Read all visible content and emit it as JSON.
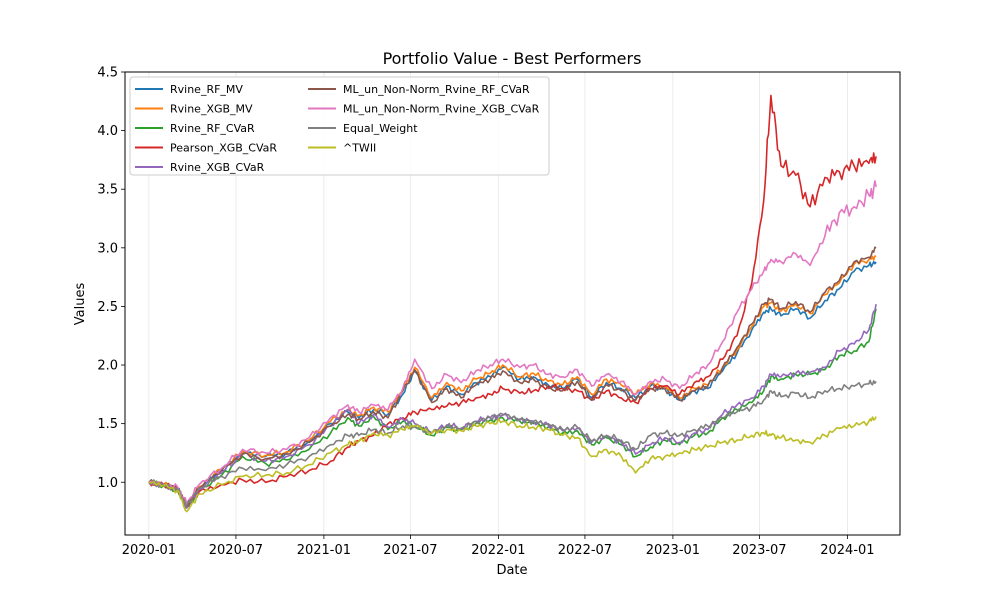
{
  "chart_data": {
    "type": "line",
    "title": "Portfolio Value - Best Performers",
    "xlabel": "Date",
    "ylabel": "Values",
    "x_tick_labels": [
      "2020-01",
      "2020-07",
      "2021-01",
      "2021-07",
      "2022-01",
      "2022-07",
      "2023-01",
      "2023-07",
      "2024-01"
    ],
    "y_tick_labels": [
      "1.0",
      "1.5",
      "2.0",
      "2.5",
      "3.0",
      "3.5",
      "4.0",
      "4.5"
    ],
    "xlim": [
      "2019-11-12",
      "2024-04-20"
    ],
    "ylim": [
      0.55,
      4.5
    ],
    "grid": "vertical",
    "legend_position": "top-left",
    "dates": [
      "2020-01-01",
      "2020-02-01",
      "2020-03-01",
      "2020-03-20",
      "2020-04-15",
      "2020-06-01",
      "2020-07-15",
      "2020-09-01",
      "2020-10-15",
      "2020-12-01",
      "2021-01-15",
      "2021-02-20",
      "2021-03-15",
      "2021-04-15",
      "2021-05-15",
      "2021-06-15",
      "2021-07-10",
      "2021-08-15",
      "2021-09-15",
      "2021-10-15",
      "2021-11-15",
      "2021-12-15",
      "2022-01-10",
      "2022-02-15",
      "2022-03-15",
      "2022-04-15",
      "2022-05-15",
      "2022-06-15",
      "2022-07-15",
      "2022-08-15",
      "2022-09-15",
      "2022-10-15",
      "2022-11-15",
      "2022-12-15",
      "2023-01-15",
      "2023-02-15",
      "2023-03-15",
      "2023-04-15",
      "2023-05-15",
      "2023-06-15",
      "2023-07-10",
      "2023-07-25",
      "2023-08-15",
      "2023-09-15",
      "2023-10-15",
      "2023-11-15",
      "2023-12-15",
      "2024-01-15",
      "2024-02-15",
      "2024-03-01"
    ],
    "series": [
      {
        "name": "Rvine_RF_MV",
        "color": "#1f77b4",
        "values": [
          1.0,
          0.98,
          0.95,
          0.8,
          0.95,
          1.1,
          1.25,
          1.22,
          1.25,
          1.35,
          1.5,
          1.6,
          1.55,
          1.62,
          1.58,
          1.75,
          1.95,
          1.7,
          1.82,
          1.75,
          1.85,
          1.9,
          1.98,
          1.88,
          1.9,
          1.83,
          1.8,
          1.88,
          1.72,
          1.85,
          1.8,
          1.72,
          1.82,
          1.8,
          1.7,
          1.78,
          1.8,
          1.95,
          2.1,
          2.3,
          2.45,
          2.48,
          2.42,
          2.48,
          2.4,
          2.55,
          2.65,
          2.8,
          2.85,
          2.88
        ]
      },
      {
        "name": "Rvine_XGB_MV",
        "color": "#ff7f0e",
        "values": [
          1.0,
          0.98,
          0.95,
          0.8,
          0.96,
          1.11,
          1.26,
          1.23,
          1.26,
          1.36,
          1.52,
          1.62,
          1.57,
          1.64,
          1.6,
          1.78,
          1.98,
          1.72,
          1.85,
          1.78,
          1.88,
          1.93,
          2.0,
          1.9,
          1.93,
          1.86,
          1.83,
          1.9,
          1.75,
          1.88,
          1.83,
          1.75,
          1.84,
          1.82,
          1.72,
          1.8,
          1.83,
          1.98,
          2.13,
          2.33,
          2.5,
          2.53,
          2.46,
          2.52,
          2.44,
          2.6,
          2.7,
          2.86,
          2.9,
          2.93
        ]
      },
      {
        "name": "Rvine_RF_CVaR",
        "color": "#2ca02c",
        "values": [
          1.0,
          0.97,
          0.93,
          0.78,
          0.93,
          1.06,
          1.22,
          1.16,
          1.19,
          1.28,
          1.42,
          1.55,
          1.48,
          1.56,
          1.45,
          1.52,
          1.48,
          1.4,
          1.47,
          1.44,
          1.5,
          1.53,
          1.55,
          1.52,
          1.5,
          1.47,
          1.42,
          1.44,
          1.32,
          1.38,
          1.32,
          1.22,
          1.3,
          1.36,
          1.32,
          1.4,
          1.42,
          1.55,
          1.62,
          1.68,
          1.78,
          1.9,
          1.88,
          1.92,
          1.92,
          1.96,
          2.08,
          2.12,
          2.2,
          2.48
        ]
      },
      {
        "name": "Pearson_XGB_CVaR",
        "color": "#d62728",
        "values": [
          1.0,
          0.98,
          0.95,
          0.8,
          0.92,
          0.98,
          1.02,
          1.0,
          1.05,
          1.1,
          1.18,
          1.3,
          1.35,
          1.4,
          1.5,
          1.55,
          1.6,
          1.62,
          1.65,
          1.68,
          1.72,
          1.75,
          1.8,
          1.76,
          1.78,
          1.82,
          1.8,
          1.78,
          1.7,
          1.78,
          1.72,
          1.68,
          1.8,
          1.82,
          1.75,
          1.85,
          1.9,
          2.05,
          2.25,
          2.7,
          3.4,
          4.3,
          3.7,
          3.62,
          3.35,
          3.6,
          3.65,
          3.7,
          3.72,
          3.78
        ]
      },
      {
        "name": "Rvine_XGB_CVaR",
        "color": "#9467bd",
        "values": [
          1.0,
          0.97,
          0.93,
          0.78,
          0.94,
          1.08,
          1.24,
          1.18,
          1.22,
          1.32,
          1.48,
          1.62,
          1.5,
          1.58,
          1.47,
          1.54,
          1.5,
          1.42,
          1.49,
          1.46,
          1.52,
          1.55,
          1.57,
          1.54,
          1.52,
          1.49,
          1.44,
          1.46,
          1.34,
          1.4,
          1.34,
          1.24,
          1.32,
          1.38,
          1.34,
          1.42,
          1.45,
          1.58,
          1.66,
          1.72,
          1.82,
          1.92,
          1.9,
          1.93,
          1.94,
          1.98,
          2.12,
          2.18,
          2.3,
          2.52
        ]
      },
      {
        "name": "ML_un_Non-Norm_Rvine_RF_CVaR",
        "color": "#8c564b",
        "values": [
          1.0,
          0.98,
          0.95,
          0.8,
          0.95,
          1.1,
          1.24,
          1.2,
          1.24,
          1.34,
          1.48,
          1.58,
          1.54,
          1.6,
          1.55,
          1.78,
          1.96,
          1.68,
          1.8,
          1.72,
          1.83,
          1.88,
          1.95,
          1.85,
          1.88,
          1.8,
          1.78,
          1.86,
          1.7,
          1.83,
          1.78,
          1.7,
          1.8,
          1.8,
          1.7,
          1.78,
          1.82,
          1.98,
          2.15,
          2.35,
          2.52,
          2.56,
          2.48,
          2.54,
          2.45,
          2.62,
          2.72,
          2.88,
          2.92,
          3.0
        ]
      },
      {
        "name": "ML_un_Non-Norm_Rvine_XGB_CVaR",
        "color": "#e377c2",
        "values": [
          1.0,
          0.98,
          0.96,
          0.82,
          0.98,
          1.12,
          1.28,
          1.25,
          1.28,
          1.38,
          1.55,
          1.66,
          1.6,
          1.66,
          1.62,
          1.8,
          2.05,
          1.8,
          1.92,
          1.85,
          1.95,
          2.0,
          2.05,
          1.98,
          2.0,
          1.92,
          1.9,
          1.96,
          1.82,
          1.92,
          1.86,
          1.75,
          1.86,
          1.88,
          1.8,
          1.92,
          2.0,
          2.2,
          2.45,
          2.65,
          2.8,
          2.9,
          2.88,
          2.95,
          2.85,
          3.1,
          3.3,
          3.35,
          3.45,
          3.52
        ]
      },
      {
        "name": "Equal_Weight",
        "color": "#7f7f7f",
        "values": [
          1.0,
          0.97,
          0.94,
          0.8,
          0.95,
          1.05,
          1.12,
          1.1,
          1.15,
          1.22,
          1.32,
          1.4,
          1.4,
          1.45,
          1.42,
          1.48,
          1.47,
          1.42,
          1.48,
          1.46,
          1.52,
          1.55,
          1.58,
          1.53,
          1.52,
          1.5,
          1.45,
          1.47,
          1.35,
          1.4,
          1.36,
          1.28,
          1.4,
          1.42,
          1.4,
          1.45,
          1.48,
          1.55,
          1.6,
          1.64,
          1.7,
          1.78,
          1.73,
          1.76,
          1.72,
          1.78,
          1.8,
          1.82,
          1.84,
          1.86
        ]
      },
      {
        "name": "^TWII",
        "color": "#bcbd22",
        "values": [
          1.0,
          0.97,
          0.93,
          0.75,
          0.9,
          0.98,
          1.05,
          1.06,
          1.08,
          1.15,
          1.25,
          1.32,
          1.35,
          1.42,
          1.4,
          1.45,
          1.48,
          1.42,
          1.45,
          1.44,
          1.48,
          1.5,
          1.52,
          1.48,
          1.47,
          1.45,
          1.4,
          1.38,
          1.22,
          1.28,
          1.22,
          1.08,
          1.2,
          1.22,
          1.25,
          1.28,
          1.3,
          1.34,
          1.36,
          1.4,
          1.42,
          1.4,
          1.38,
          1.36,
          1.34,
          1.4,
          1.46,
          1.48,
          1.52,
          1.56
        ]
      }
    ]
  }
}
